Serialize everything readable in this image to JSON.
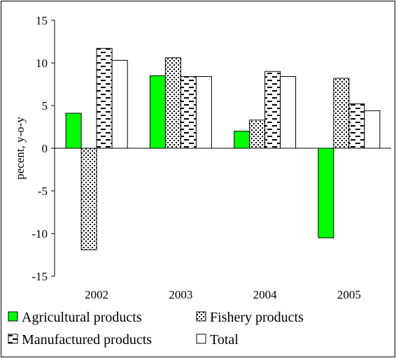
{
  "chart_data": {
    "type": "bar",
    "title": "",
    "xlabel": "",
    "ylabel": "pecent, y-o-y",
    "ylim": [
      -15,
      15
    ],
    "yticks": [
      15,
      10,
      5,
      0,
      -5,
      -10,
      -15
    ],
    "grid": false,
    "legend_position": "bottom",
    "categories": [
      "2002",
      "2003",
      "2004",
      "2005"
    ],
    "series": [
      {
        "name": "Agricultural products",
        "values": [
          4.1,
          8.5,
          2.0,
          -10.5
        ],
        "pattern": "solid-green",
        "color": "#00ff00"
      },
      {
        "name": "Fishery products",
        "values": [
          -11.9,
          10.6,
          3.3,
          8.2
        ],
        "pattern": "dots",
        "color": "#000000"
      },
      {
        "name": "Manufactured products",
        "values": [
          11.7,
          8.4,
          9.0,
          5.2
        ],
        "pattern": "dashes",
        "color": "#000000"
      },
      {
        "name": "Total",
        "values": [
          10.3,
          8.4,
          8.4,
          4.4
        ],
        "pattern": "empty",
        "color": "#ffffff"
      }
    ]
  }
}
